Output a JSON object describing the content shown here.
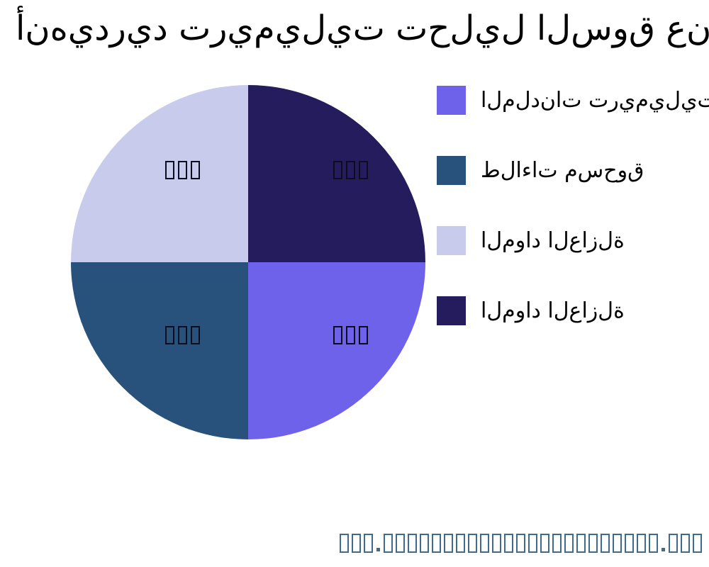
{
  "chart_data": {
    "type": "pie",
    "title": "أنهيدريد تريميليت تحليل السوق عن طريق التطبيق",
    "labels": [
      "الملدنات تريميليتات",
      "طلاءات مسحوق",
      "المواد العازلة",
      "المواد العازلة"
    ],
    "values": [
      25,
      25,
      25,
      25
    ],
    "colors": [
      "#6F62EA",
      "#28527C",
      "#C9CBEC",
      "#241C5C"
    ],
    "legend_position": "right",
    "start_angle_deg": 0,
    "counterclockwise": false,
    "slice_value_label": "□□□",
    "background": "#ffffff"
  },
  "watermark": {
    "text": "□□□.□□□□□□□□□□□□□□□□□□□□□□□.□□□",
    "color": "#3E6B8E"
  }
}
